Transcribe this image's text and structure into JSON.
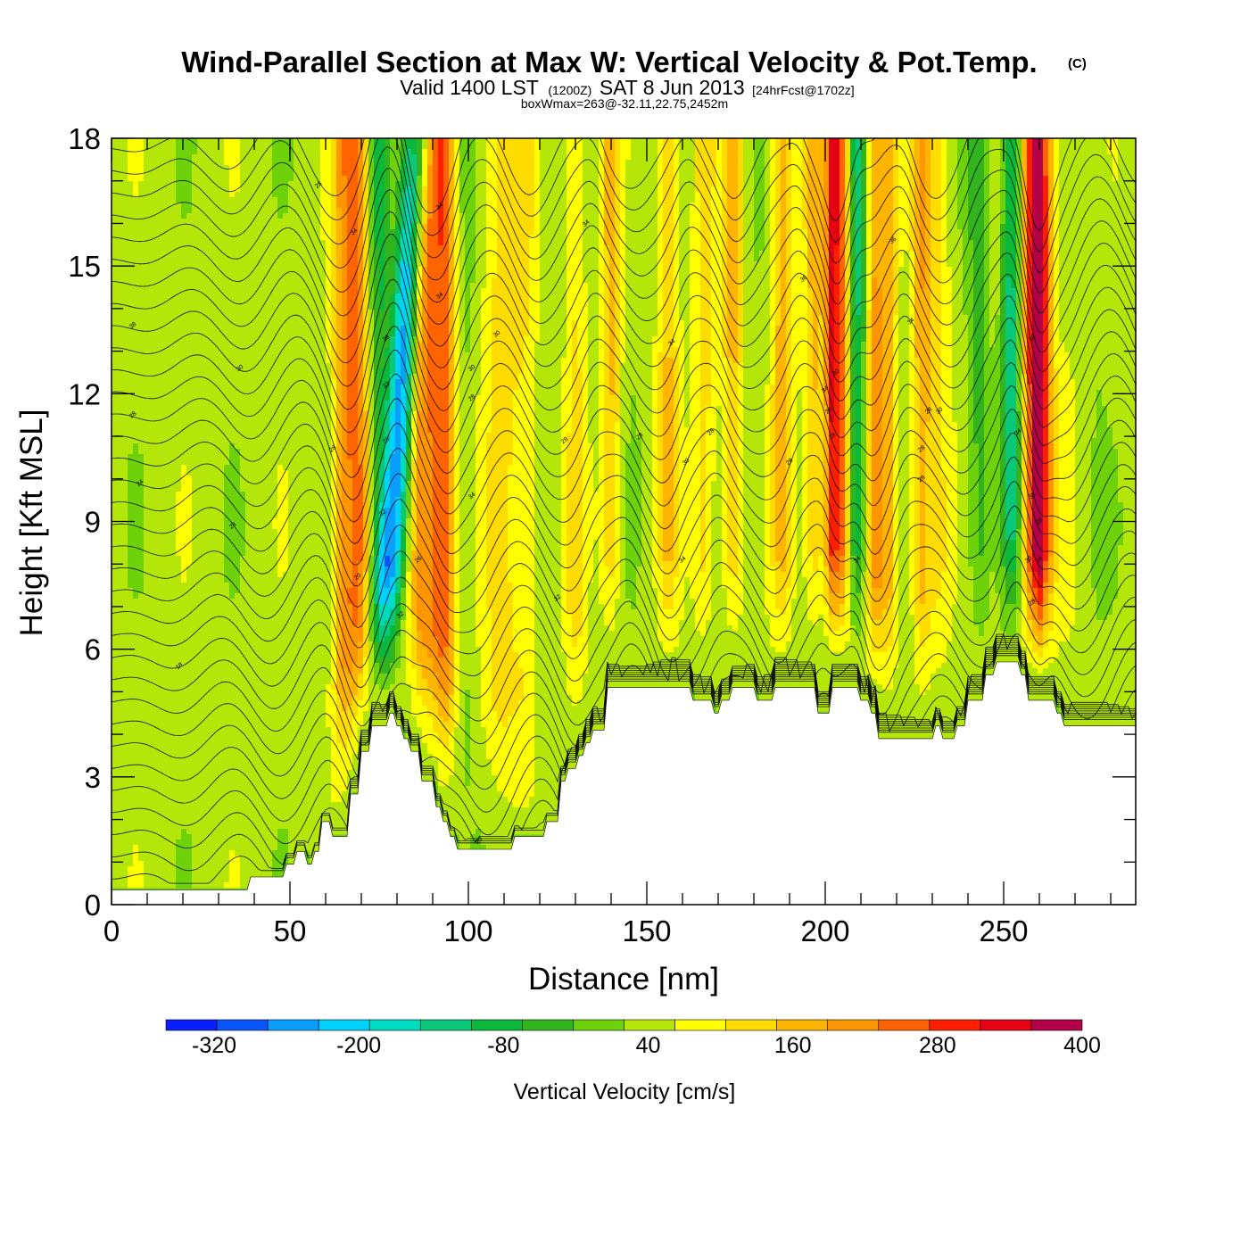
{
  "chart_data": {
    "type": "heatmap",
    "title": "Wind-Parallel Section at Max W: Vertical Velocity & Pot.Temp.",
    "title_mark": "(C)",
    "subtitle": {
      "valid": "Valid 1400 LST",
      "utc": "(1200Z)",
      "date": "SAT 8 Jun 2013",
      "forecast": "[24hrFcst@1702z]",
      "boxwmax": "boxWmax=263@-32.11,22.75,2452m"
    },
    "xlabel": "Distance [nm]",
    "ylabel": "Height [Kft MSL]",
    "xlim": [
      0,
      287
    ],
    "ylim": [
      0,
      18
    ],
    "x_ticks": [
      "0",
      "50",
      "100",
      "150",
      "200",
      "250"
    ],
    "y_ticks": [
      "0",
      "3",
      "6",
      "9",
      "12",
      "15",
      "18"
    ],
    "grid": false,
    "colorbar": {
      "title": "Vertical Velocity [cm/s]",
      "placement": "bottom",
      "bounds": [
        -360,
        400
      ],
      "tick_labels": [
        "-320",
        "-200",
        "-80",
        "40",
        "160",
        "280",
        "400"
      ],
      "colors": [
        "#0a1eff",
        "#0a55ff",
        "#0a9eff",
        "#00d2ff",
        "#00dcc0",
        "#0ac87a",
        "#0ab83c",
        "#32b41e",
        "#6ed20a",
        "#b4e60a",
        "#ffff00",
        "#ffdc00",
        "#ffb400",
        "#ff9600",
        "#ff6400",
        "#ff1e00",
        "#e60014",
        "#b40046"
      ]
    },
    "base_level": 40,
    "velocity_bands": [
      {
        "center": 64,
        "width": 3,
        "value": 100
      },
      {
        "center": 67,
        "width": 3,
        "value": 150
      },
      {
        "center": 70,
        "width": 2.5,
        "value": 140
      },
      {
        "center": 75,
        "width": 3,
        "value": -90
      },
      {
        "center": 78,
        "width": 3,
        "value": -240
      },
      {
        "center": 81,
        "width": 2.5,
        "value": -120
      },
      {
        "center": 86,
        "width": 3,
        "value": 130
      },
      {
        "center": 90,
        "width": 4,
        "value": 180
      },
      {
        "center": 94,
        "width": 3,
        "value": 150
      },
      {
        "center": 99,
        "width": 3,
        "value": -20
      },
      {
        "center": 109,
        "width": 5,
        "value": 90
      },
      {
        "center": 116,
        "width": 4,
        "value": 70
      },
      {
        "center": 122,
        "width": 4,
        "value": 0
      },
      {
        "center": 130,
        "width": 3,
        "value": 80
      },
      {
        "center": 140,
        "width": 3,
        "value": 130
      },
      {
        "center": 146,
        "width": 4,
        "value": 0
      },
      {
        "center": 156,
        "width": 3,
        "value": 120
      },
      {
        "center": 166,
        "width": 3,
        "value": 100
      },
      {
        "center": 174,
        "width": 3,
        "value": 130
      },
      {
        "center": 181,
        "width": 3,
        "value": 0
      },
      {
        "center": 188,
        "width": 3,
        "value": 140
      },
      {
        "center": 197,
        "width": 3,
        "value": 130
      },
      {
        "center": 202,
        "width": 2,
        "value": 280
      },
      {
        "center": 205,
        "width": 2,
        "value": 200
      },
      {
        "center": 209,
        "width": 2.5,
        "value": -140
      },
      {
        "center": 214,
        "width": 2.5,
        "value": 170
      },
      {
        "center": 218,
        "width": 2.5,
        "value": 120
      },
      {
        "center": 223,
        "width": 3,
        "value": 0
      },
      {
        "center": 227,
        "width": 3,
        "value": 150
      },
      {
        "center": 232,
        "width": 3,
        "value": 80
      },
      {
        "center": 243,
        "width": 3,
        "value": -70
      },
      {
        "center": 252,
        "width": 2.5,
        "value": -160
      },
      {
        "center": 257,
        "width": 2,
        "value": 200
      },
      {
        "center": 260,
        "width": 2,
        "value": 380
      },
      {
        "center": 263,
        "width": 2,
        "value": 120
      },
      {
        "center": 268,
        "width": 3,
        "value": 30
      },
      {
        "center": 276,
        "width": 3,
        "value": 0
      }
    ],
    "terrain": {
      "x": [
        0,
        38,
        39,
        48,
        49,
        51,
        52,
        54,
        55,
        56,
        57,
        58,
        59,
        61,
        62,
        66,
        67,
        69,
        70,
        72,
        73,
        77,
        78,
        79,
        80,
        81,
        82,
        83,
        84,
        86,
        87,
        90,
        91,
        92,
        93,
        94,
        95,
        96,
        97,
        112,
        113,
        121,
        122,
        125,
        126,
        127,
        128,
        130,
        131,
        132,
        133,
        134,
        135,
        138,
        139,
        162,
        163,
        168,
        169,
        170,
        171,
        173,
        174,
        180,
        181,
        185,
        186,
        197,
        198,
        201,
        202,
        209,
        210,
        212,
        213,
        214,
        215,
        230,
        231,
        232,
        233,
        236,
        237,
        239,
        240,
        244,
        245,
        247,
        248,
        254,
        255,
        256,
        257,
        264,
        265,
        266,
        267,
        287
      ],
      "h_kft": [
        0.35,
        0.35,
        0.65,
        0.65,
        0.95,
        0.95,
        1.25,
        1.25,
        0.95,
        0.95,
        1.25,
        1.25,
        1.95,
        1.95,
        1.6,
        1.6,
        2.6,
        2.6,
        3.6,
        3.6,
        4.2,
        4.2,
        4.5,
        4.5,
        4.2,
        4.2,
        3.9,
        3.9,
        3.6,
        3.6,
        2.9,
        2.9,
        2.3,
        2.3,
        1.95,
        1.95,
        1.6,
        1.6,
        1.3,
        1.3,
        1.6,
        1.6,
        1.95,
        1.95,
        2.9,
        2.9,
        3.2,
        3.2,
        3.5,
        3.5,
        3.8,
        3.8,
        4.1,
        4.1,
        5.1,
        5.1,
        4.8,
        4.8,
        4.5,
        4.5,
        4.8,
        4.8,
        5.1,
        5.1,
        4.8,
        4.8,
        5.1,
        5.1,
        4.5,
        4.5,
        5.1,
        5.1,
        4.8,
        4.8,
        4.5,
        4.5,
        3.9,
        3.9,
        4.2,
        4.2,
        3.9,
        3.9,
        4.2,
        4.2,
        4.8,
        4.8,
        5.4,
        5.4,
        5.7,
        5.7,
        5.4,
        5.4,
        4.8,
        4.8,
        4.5,
        4.5,
        4.2,
        4.2,
        3.9
      ]
    },
    "contour_labels": [
      {
        "x": 58,
        "y": 16.9,
        "text": "28"
      },
      {
        "x": 68,
        "y": 15.8,
        "text": "34"
      },
      {
        "x": 92,
        "y": 16.4,
        "text": "34"
      },
      {
        "x": 133,
        "y": 16.0,
        "text": "34"
      },
      {
        "x": 6,
        "y": 13.6,
        "text": "38"
      },
      {
        "x": 36,
        "y": 12.6,
        "text": "30"
      },
      {
        "x": 6,
        "y": 11.5,
        "text": "28"
      },
      {
        "x": 77,
        "y": 13.3,
        "text": "38"
      },
      {
        "x": 92,
        "y": 14.3,
        "text": "34"
      },
      {
        "x": 108,
        "y": 13.4,
        "text": "30"
      },
      {
        "x": 157,
        "y": 13.2,
        "text": "34"
      },
      {
        "x": 194,
        "y": 14.7,
        "text": "36"
      },
      {
        "x": 219,
        "y": 15.6,
        "text": "36"
      },
      {
        "x": 224,
        "y": 13.7,
        "text": "34"
      },
      {
        "x": 258,
        "y": 13.3,
        "text": "38"
      },
      {
        "x": 77,
        "y": 12.2,
        "text": "32"
      },
      {
        "x": 101,
        "y": 12.6,
        "text": "30"
      },
      {
        "x": 101,
        "y": 11.9,
        "text": "28"
      },
      {
        "x": 62,
        "y": 10.7,
        "text": "28"
      },
      {
        "x": 77,
        "y": 10.9,
        "text": "28"
      },
      {
        "x": 127,
        "y": 10.9,
        "text": "28"
      },
      {
        "x": 148,
        "y": 11.0,
        "text": "28"
      },
      {
        "x": 168,
        "y": 11.1,
        "text": "28"
      },
      {
        "x": 161,
        "y": 10.4,
        "text": "30"
      },
      {
        "x": 190,
        "y": 10.4,
        "text": "28"
      },
      {
        "x": 200,
        "y": 12.1,
        "text": "34"
      },
      {
        "x": 203,
        "y": 12.5,
        "text": "30"
      },
      {
        "x": 201,
        "y": 11.6,
        "text": "28"
      },
      {
        "x": 202,
        "y": 11.0,
        "text": "28"
      },
      {
        "x": 229,
        "y": 11.6,
        "text": "28"
      },
      {
        "x": 232,
        "y": 11.6,
        "text": "30"
      },
      {
        "x": 227,
        "y": 10.7,
        "text": "28"
      },
      {
        "x": 227,
        "y": 10.0,
        "text": "28"
      },
      {
        "x": 254,
        "y": 11.1,
        "text": "34"
      },
      {
        "x": 8,
        "y": 9.9,
        "text": "24"
      },
      {
        "x": 76,
        "y": 9.2,
        "text": "32"
      },
      {
        "x": 101,
        "y": 9.6,
        "text": "34"
      },
      {
        "x": 34,
        "y": 8.9,
        "text": "28"
      },
      {
        "x": 86,
        "y": 8.1,
        "text": "26"
      },
      {
        "x": 160,
        "y": 8.1,
        "text": "34"
      },
      {
        "x": 209,
        "y": 8.1,
        "text": "34"
      },
      {
        "x": 258,
        "y": 9.6,
        "text": "38"
      },
      {
        "x": 260,
        "y": 9.0,
        "text": "38"
      },
      {
        "x": 257,
        "y": 8.1,
        "text": "30"
      },
      {
        "x": 260,
        "y": 8.1,
        "text": "34"
      },
      {
        "x": 258,
        "y": 7.1,
        "text": "28"
      },
      {
        "x": 69,
        "y": 7.7,
        "text": "20"
      },
      {
        "x": 81,
        "y": 6.8,
        "text": "32"
      },
      {
        "x": 125,
        "y": 7.2,
        "text": "32"
      },
      {
        "x": 19,
        "y": 5.6,
        "text": "18"
      },
      {
        "x": 103,
        "y": 1.5,
        "text": "20"
      }
    ]
  }
}
